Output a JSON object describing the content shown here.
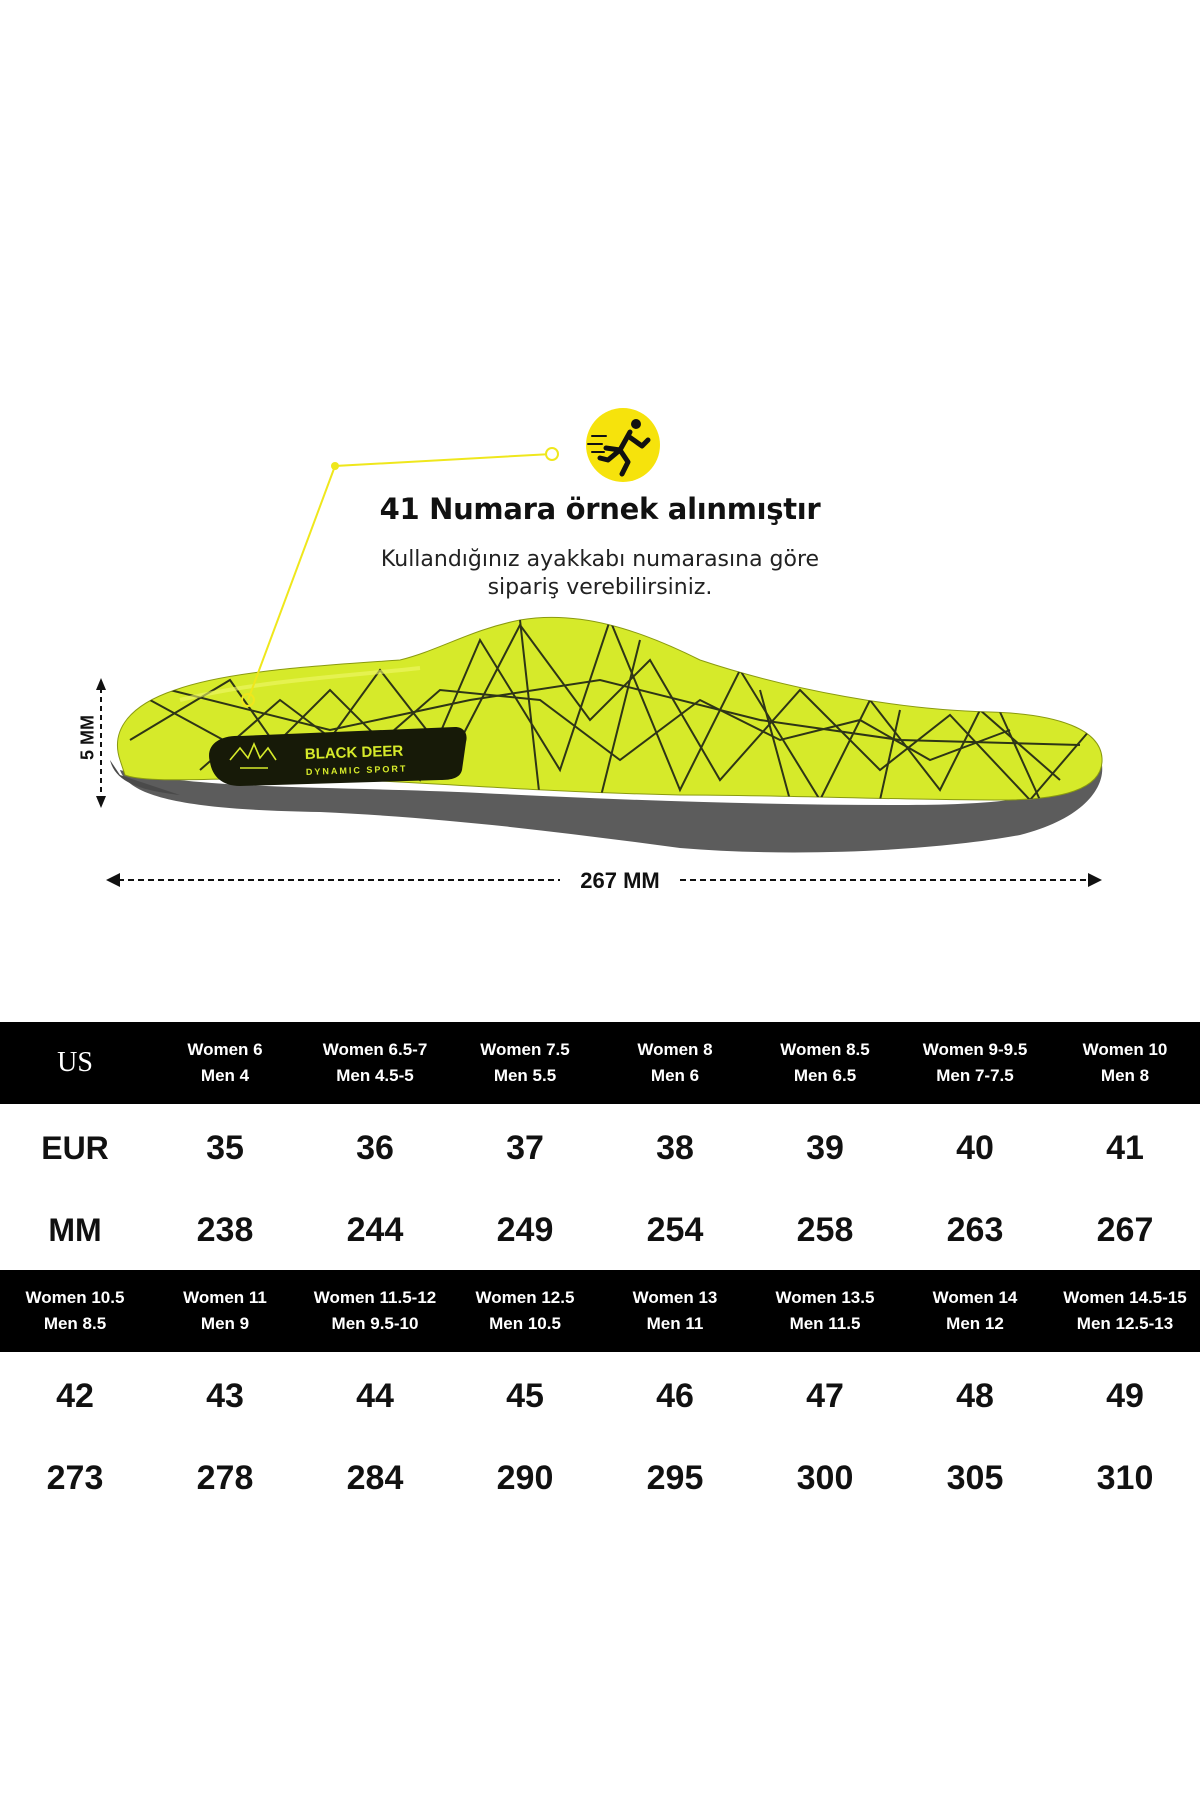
{
  "product": {
    "headline": "41 Numara örnek alınmıştır",
    "subtitle_line1": "Kullandığınız ayakkabı numarasına göre",
    "subtitle_line2": "sipariş verebilirsiniz.",
    "logo_main": "BLACK DEER",
    "logo_sub": "DYNAMIC SPORT",
    "length_label": "267 MM",
    "thickness_label": "5 MM",
    "icon": "running-man-icon",
    "colors": {
      "insole": "#d8ec28",
      "accent_yellow": "#f5e60f",
      "callout_line": "#f0e81a",
      "base": "#5a5a5a"
    }
  },
  "size_table": {
    "section1": {
      "header_label": "US",
      "headers": [
        {
          "line1": "Women 6",
          "line2": "Men 4"
        },
        {
          "line1": "Women 6.5-7",
          "line2": "Men 4.5-5"
        },
        {
          "line1": "Women 7.5",
          "line2": "Men 5.5"
        },
        {
          "line1": "Women 8",
          "line2": "Men 6"
        },
        {
          "line1": "Women 8.5",
          "line2": "Men 6.5"
        },
        {
          "line1": "Women 9-9.5",
          "line2": "Men 7-7.5"
        },
        {
          "line1": "Women 10",
          "line2": "Men 8"
        }
      ],
      "eur_label": "EUR",
      "eur": [
        "35",
        "36",
        "37",
        "38",
        "39",
        "40",
        "41"
      ],
      "mm_label": "MM",
      "mm": [
        "238",
        "244",
        "249",
        "254",
        "258",
        "263",
        "267"
      ]
    },
    "section2": {
      "headers": [
        {
          "line1": "Women 10.5",
          "line2": "Men 8.5"
        },
        {
          "line1": "Women 11",
          "line2": "Men 9"
        },
        {
          "line1": "Women 11.5-12",
          "line2": "Men 9.5-10"
        },
        {
          "line1": "Women 12.5",
          "line2": "Men 10.5"
        },
        {
          "line1": "Women 13",
          "line2": "Men 11"
        },
        {
          "line1": "Women 13.5",
          "line2": "Men 11.5"
        },
        {
          "line1": "Women 14",
          "line2": "Men 12"
        },
        {
          "line1": "Women 14.5-15",
          "line2": "Men 12.5-13"
        }
      ],
      "eur": [
        "42",
        "43",
        "44",
        "45",
        "46",
        "47",
        "48",
        "49"
      ],
      "mm": [
        "273",
        "278",
        "284",
        "290",
        "295",
        "300",
        "305",
        "310"
      ]
    }
  }
}
